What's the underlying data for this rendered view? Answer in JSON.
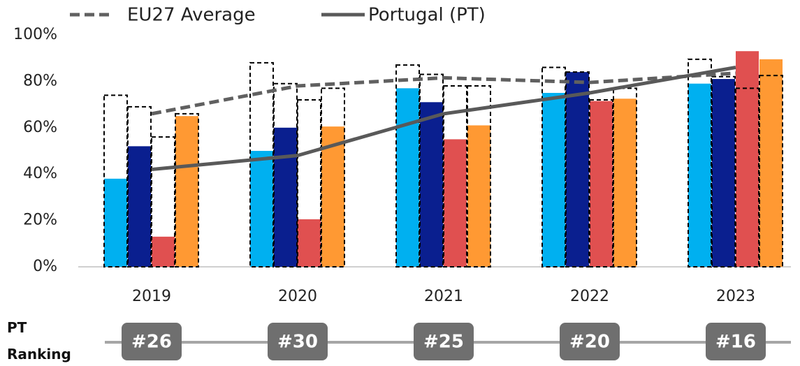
{
  "chart_data": {
    "type": "bar",
    "categories": [
      "2019",
      "2020",
      "2021",
      "2022",
      "2023"
    ],
    "ylim": [
      0,
      100
    ],
    "yticks": [
      {
        "value": 0,
        "label": "0%"
      },
      {
        "value": 20,
        "label": "20%"
      },
      {
        "value": 40,
        "label": "40%"
      },
      {
        "value": 60,
        "label": "60%"
      },
      {
        "value": 80,
        "label": "80%"
      },
      {
        "value": 100,
        "label": "100%"
      }
    ],
    "bars": [
      {
        "color": "#00b0f0",
        "values": [
          38,
          50,
          77,
          75,
          79
        ],
        "eu_values": [
          74,
          88,
          87,
          86,
          89.5
        ]
      },
      {
        "color": "#0a1f8f",
        "values": [
          52,
          60,
          71,
          84,
          81
        ],
        "eu_values": [
          69,
          79,
          83,
          84,
          82
        ]
      },
      {
        "color": "#e05050",
        "values": [
          13,
          20.5,
          55,
          71.5,
          93
        ],
        "eu_values": [
          56,
          72,
          78,
          72,
          77
        ]
      },
      {
        "color": "#ff9933",
        "values": [
          65,
          60.5,
          61,
          72.5,
          89.5
        ],
        "eu_values": [
          66,
          77,
          78,
          77,
          82.5
        ]
      }
    ],
    "series": [
      {
        "name": "EU27 Average",
        "color": "#606060",
        "dashed": true,
        "values": [
          66,
          78,
          81.5,
          79.5,
          83.5
        ]
      },
      {
        "name": "Portugal (PT)",
        "color": "#595959",
        "dashed": false,
        "values": [
          42,
          48,
          66,
          75,
          86
        ]
      }
    ],
    "ranking_label": "PT Ranking",
    "rankings": [
      "#26",
      "#30",
      "#25",
      "#20",
      "#16"
    ]
  }
}
